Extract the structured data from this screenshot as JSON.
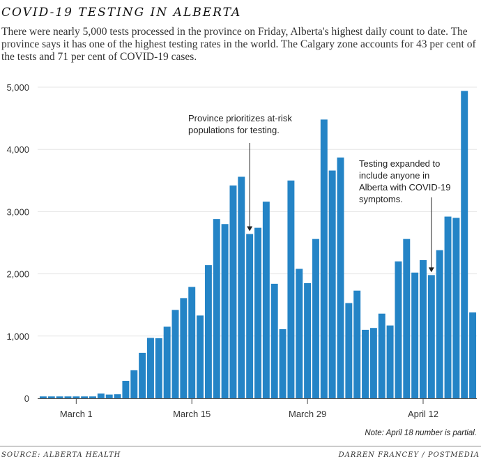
{
  "chart_data": {
    "type": "bar",
    "title": "COVID-19 TESTING IN ALBERTA",
    "subtitle": "There were nearly 5,000 tests processed in the province on Friday, Alberta's highest daily count to date. The province says it has one of the highest testing rates in the world.  The Calgary zone accounts for 43 per cent of the tests and 71 per cent of COVID-19 cases.",
    "xlabel": "",
    "ylabel": "",
    "x_start": "2020-02-26",
    "x_end": "2020-04-18",
    "values": [
      30,
      30,
      30,
      30,
      30,
      30,
      30,
      75,
      60,
      65,
      280,
      450,
      730,
      970,
      965,
      1150,
      1420,
      1610,
      1790,
      1330,
      2140,
      2880,
      2800,
      3420,
      3560,
      2640,
      2740,
      3160,
      1840,
      1110,
      3500,
      2080,
      1850,
      2560,
      4480,
      3660,
      3870,
      1530,
      1730,
      1100,
      1130,
      1360,
      1170,
      2200,
      2560,
      2020,
      2220,
      1980,
      2380,
      2920,
      2900,
      4940,
      1380
    ],
    "ylim": [
      0,
      5000
    ],
    "y_ticks": [
      {
        "value": 0,
        "label": "0"
      },
      {
        "value": 1000,
        "label": "1,000"
      },
      {
        "value": 2000,
        "label": "2,000"
      },
      {
        "value": 3000,
        "label": "3,000"
      },
      {
        "value": 4000,
        "label": "4,000"
      },
      {
        "value": 5000,
        "label": "5,000"
      }
    ],
    "x_ticks": [
      {
        "index": 4,
        "label": "March 1"
      },
      {
        "index": 18,
        "label": "March 15"
      },
      {
        "index": 32,
        "label": "March 29"
      },
      {
        "index": 46,
        "label": "April 12"
      }
    ],
    "grid": true,
    "bar_color": "#2484c6",
    "annotations": [
      {
        "index": 25,
        "lines": [
          "Province prioritizes at-risk",
          "populations for testing."
        ]
      },
      {
        "index": 47,
        "lines": [
          "Testing expanded to",
          "include anyone in",
          "Alberta with COVID-19",
          "symptoms."
        ]
      }
    ],
    "note": "Note: April 18 number is partial."
  },
  "footer": {
    "source": "SOURCE: ALBERTA HEALTH",
    "credit": "DARREN FRANCEY / POSTMEDIA"
  }
}
